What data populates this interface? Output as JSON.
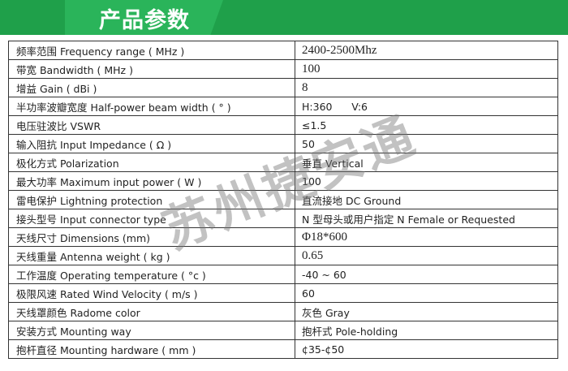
{
  "header": {
    "title": "产品参数",
    "color": "#1fa04a"
  },
  "watermark": "苏州捷安通",
  "rows": [
    {
      "label": "频率范围 Frequency range ( MHz )",
      "value": "2400-2500Mhz"
    },
    {
      "label": "带宽 Bandwidth ( MHz )",
      "value": "100"
    },
    {
      "label": "增益 Gain ( dBi )",
      "value": "8"
    },
    {
      "label": "半功率波瓣宽度 Half-power beam width ( ° )",
      "value": "H:360      V:6"
    },
    {
      "label": "电压驻波比 VSWR",
      "value": "≤1.5"
    },
    {
      "label": "输入阻抗 Input Impedance ( Ω )",
      "value": "50"
    },
    {
      "label": "极化方式 Polarization",
      "value": "垂直 Vertical"
    },
    {
      "label": "最大功率 Maximum input power ( W )",
      "value": "100"
    },
    {
      "label": "雷电保护 Lightning protection",
      "value": "直流接地 DC Ground"
    },
    {
      "label": "接头型号 Input connector type",
      "value": "N 型母头或用户指定 N Female or Requested"
    },
    {
      "label": "天线尺寸 Dimensions (mm)",
      "value": "Φ18*600"
    },
    {
      "label": "天线重量 Antenna weight ( kg )",
      "value": "0.65"
    },
    {
      "label": "工作温度 Operating temperature ( °c )",
      "value": "-40 ~ 60"
    },
    {
      "label": "极限风速 Rated Wind Velocity ( m/s )",
      "value": "60"
    },
    {
      "label": "天线罩颜色 Radome color",
      "value": "灰色 Gray"
    },
    {
      "label": "安装方式 Mounting way",
      "value": "抱杆式 Pole-holding"
    },
    {
      "label": "抱杆直径 Mounting hardware ( mm )",
      "value": "¢35-¢50"
    }
  ]
}
